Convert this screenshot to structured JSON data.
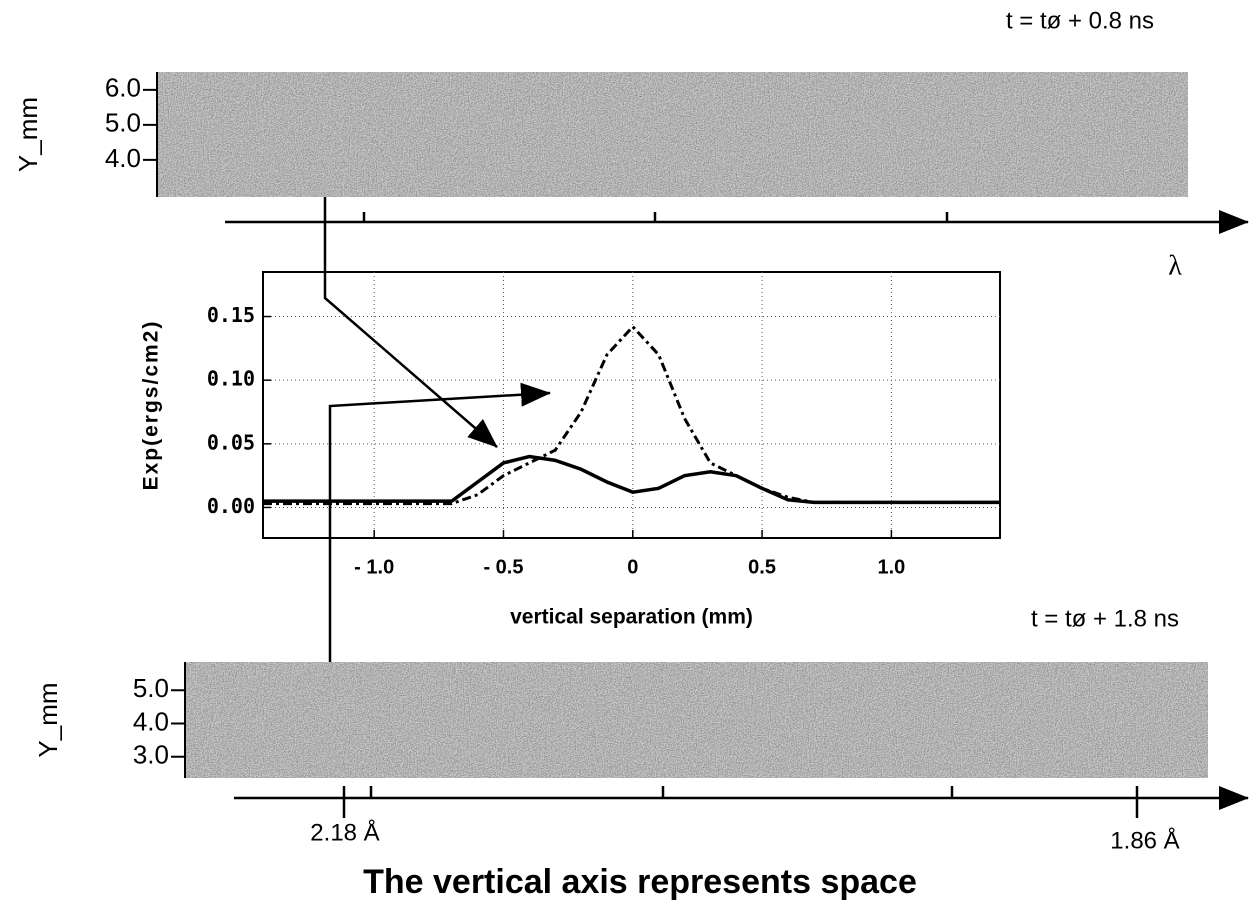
{
  "chart_data": [
    {
      "type": "image",
      "annotation": "t = tø + 0.8 ns",
      "ylabel": "Y_mm",
      "axis_label": "λ",
      "ylim": [
        2.94,
        6.51
      ],
      "yticks": [
        {
          "value": 4,
          "label": "4.0"
        },
        {
          "value": 5,
          "label": "5.0"
        },
        {
          "value": 6,
          "label": "6.0"
        }
      ]
    },
    {
      "type": "line",
      "xlabel": "vertical separation (mm)",
      "ylabel": "Exp(ergs/cm2)",
      "xlim": [
        -1.43,
        1.42
      ],
      "ylim": [
        -0.024,
        0.185
      ],
      "xticks": [
        {
          "value": -1,
          "label": "- 1.0"
        },
        {
          "value": -0.5,
          "label": "- 0.5"
        },
        0,
        0.5,
        {
          "value": 1,
          "label": "1.0"
        }
      ],
      "yticks": [
        {
          "value": 0,
          "label": "0.00"
        },
        {
          "value": 0.05,
          "label": "0.05"
        },
        {
          "value": 0.1,
          "label": "0.10"
        },
        {
          "value": 0.15,
          "label": "0.15"
        }
      ],
      "grid": true,
      "x": [
        -1.43,
        -0.7,
        -0.6,
        -0.5,
        -0.4,
        -0.3,
        -0.2,
        -0.1,
        0,
        0.1,
        0.2,
        0.3,
        0.4,
        0.5,
        0.6,
        0.7,
        1.42
      ],
      "series": [
        {
          "color": "#000000",
          "linestyle": "solid",
          "values": [
            0.005,
            0.005,
            0.02,
            0.035,
            0.04,
            0.037,
            0.03,
            0.02,
            0.012,
            0.015,
            0.025,
            0.028,
            0.025,
            0.015,
            0.006,
            0.004,
            0.004
          ]
        },
        {
          "color": "#000000",
          "linestyle": "dashdot",
          "values": [
            0.003,
            0.003,
            0.01,
            0.025,
            0.035,
            0.045,
            0.075,
            0.12,
            0.142,
            0.12,
            0.07,
            0.035,
            0.025,
            0.015,
            0.008,
            0.004,
            0.004
          ]
        }
      ]
    },
    {
      "type": "image",
      "annotation": "t = tø + 1.8 ns",
      "ylabel": "Y_mm",
      "markers": [
        "2.18 Å",
        "1.86 Å"
      ],
      "ylim": [
        2.36,
        5.85
      ],
      "yticks": [
        {
          "value": 3,
          "label": "3.0"
        },
        {
          "value": 4,
          "label": "4.0"
        },
        {
          "value": 5,
          "label": "5.0"
        }
      ]
    }
  ],
  "caption": "The vertical axis represents space"
}
